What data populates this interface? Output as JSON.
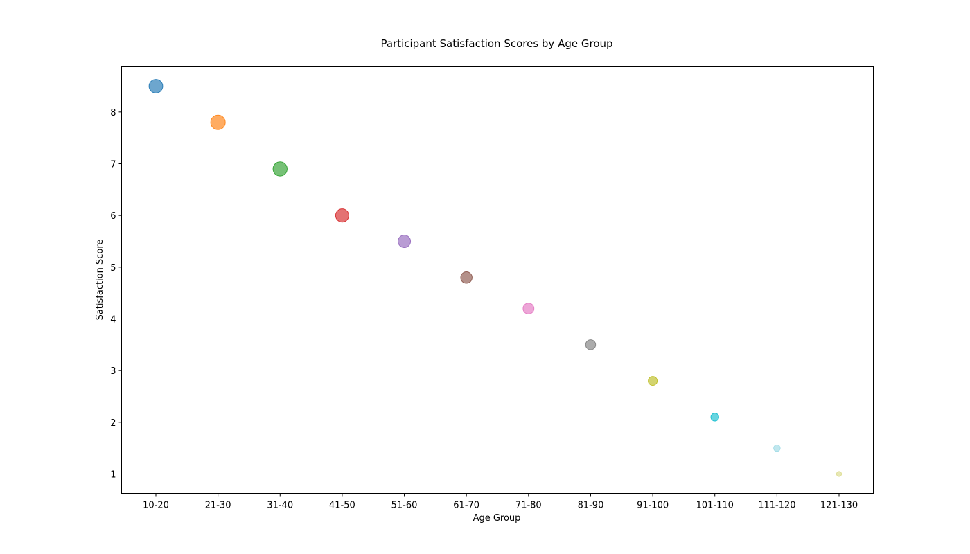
{
  "chart_data": {
    "type": "scatter",
    "title": "Participant Satisfaction Scores by Age Group",
    "xlabel": "Age Group",
    "ylabel": "Satisfaction Score",
    "categories": [
      "10-20",
      "21-30",
      "31-40",
      "41-50",
      "51-60",
      "61-70",
      "71-80",
      "81-90",
      "91-100",
      "101-110",
      "111-120",
      "121-130"
    ],
    "values": [
      8.5,
      7.8,
      6.9,
      6.0,
      5.5,
      4.8,
      4.2,
      3.5,
      2.8,
      2.1,
      1.5,
      1.0
    ],
    "colors": [
      "#1f77b4",
      "#ff7f0e",
      "#2ca02c",
      "#d62728",
      "#9467bd",
      "#8c564b",
      "#e377c2",
      "#7f7f7f",
      "#bcbd22",
      "#17becf",
      "#9edae5",
      "#dbdb8d"
    ],
    "marker_size_levels": [
      300,
      340,
      320,
      280,
      250,
      210,
      190,
      160,
      130,
      100,
      70,
      40
    ],
    "ylim": [
      0.625,
      8.875
    ],
    "yticks": [
      1,
      2,
      3,
      4,
      5,
      6,
      7,
      8
    ],
    "grid": false,
    "legend": "none"
  }
}
